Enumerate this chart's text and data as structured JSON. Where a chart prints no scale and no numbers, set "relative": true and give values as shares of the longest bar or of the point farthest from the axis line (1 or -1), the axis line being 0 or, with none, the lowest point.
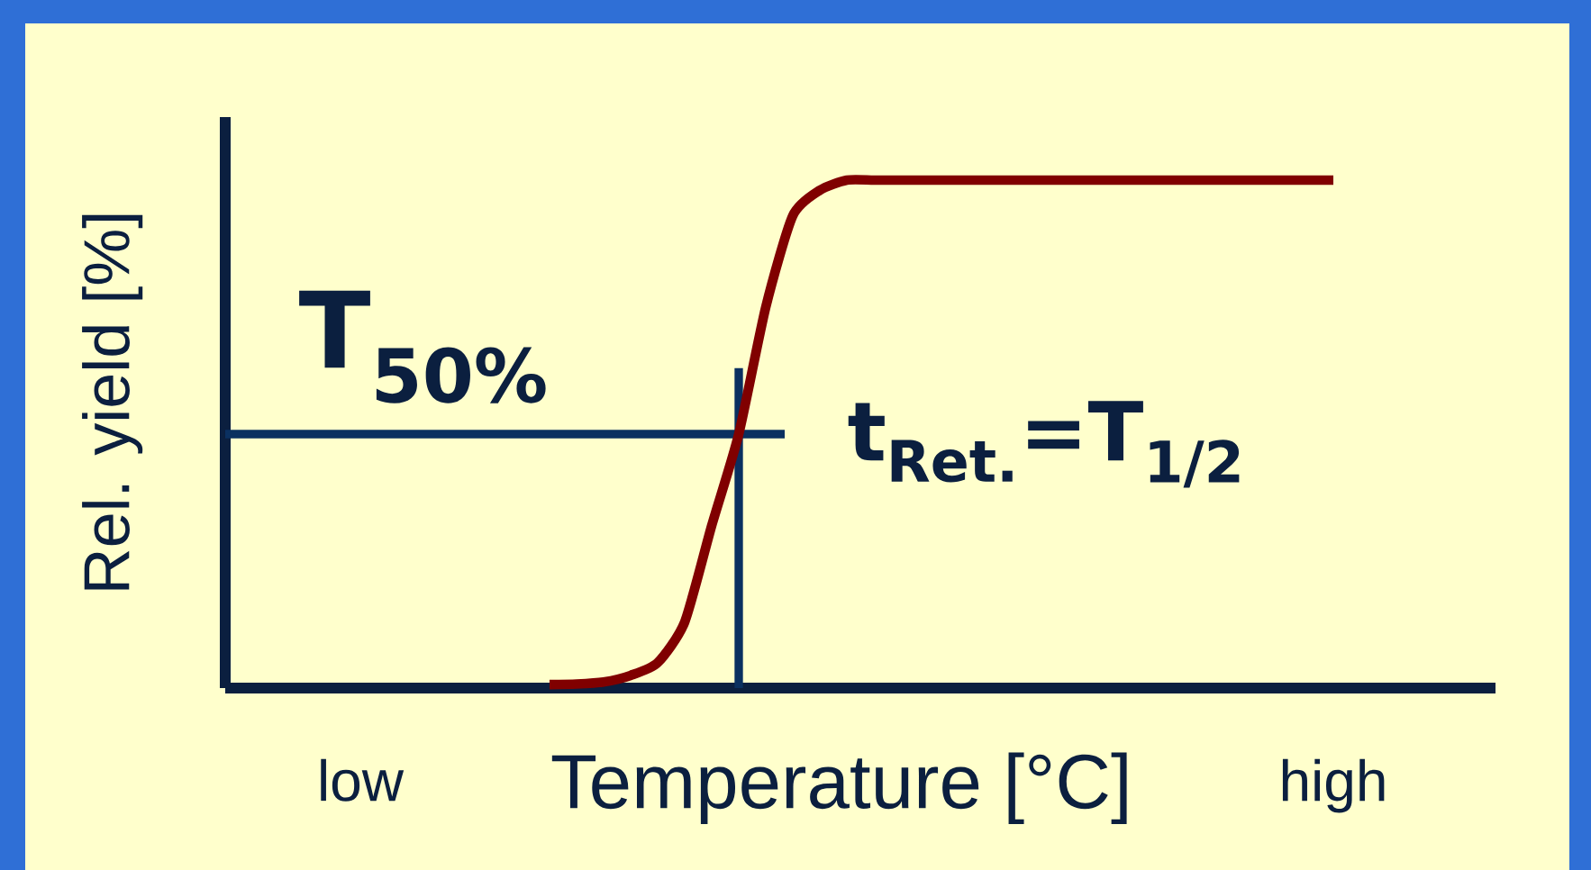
{
  "chart_data": {
    "type": "line",
    "relative": true,
    "xlabel": "Temperature [°C]",
    "ylabel": "Rel. yield [%]",
    "categories": [
      null,
      null,
      null,
      null,
      null,
      "low",
      null,
      null,
      null,
      null,
      null,
      null,
      null,
      null,
      null,
      null,
      null,
      null,
      null,
      null,
      null,
      null,
      null,
      null,
      null,
      null,
      null,
      null,
      null,
      null,
      null,
      null,
      null,
      null,
      null,
      null,
      null,
      null,
      null,
      null,
      null,
      "high",
      null,
      null,
      null,
      null,
      null
    ],
    "series": [
      {
        "color": "#800000",
        "values": [
          null,
          null,
          null,
          null,
          null,
          null,
          null,
          null,
          null,
          null,
          null,
          null,
          0.007,
          0.008,
          0.012,
          0.025,
          0.05,
          0.13,
          0.32,
          0.5,
          0.75,
          0.93,
          0.98,
          1.0,
          1.0,
          1.0,
          1.0,
          1.0,
          1.0,
          1.0,
          1.0,
          1.0,
          1.0,
          1.0,
          1.0,
          1.0,
          1.0,
          1.0,
          1.0,
          1.0,
          1.0,
          1.0,
          null,
          null,
          null,
          null,
          null
        ]
      }
    ],
    "ref_lines": [
      {
        "axis": "y",
        "value": 0.5,
        "label": "T$_{50%}$",
        "color": "#0a3060"
      }
    ],
    "annotations": [
      "t$_{Ret.}$=T$_{1/2}$"
    ],
    "marker": "none",
    "line_style": "solid"
  }
}
